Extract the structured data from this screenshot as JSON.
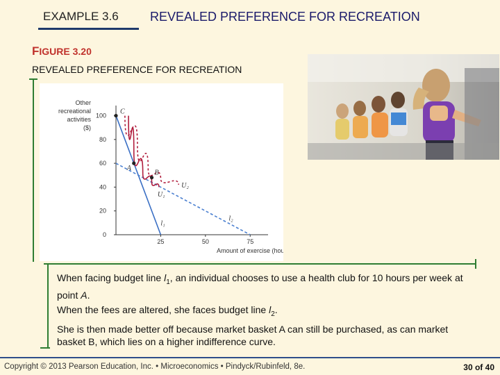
{
  "header": {
    "example_label": "EXAMPLE 3.6",
    "title": "REVEALED PREFERENCE FOR RECREATION"
  },
  "figure": {
    "label_big": "F",
    "label_rest": "IGURE 3.20",
    "subtitle": "REVEALED PREFERENCE FOR RECREATION"
  },
  "chart_data": {
    "type": "line",
    "ylabel_lines": [
      "Other",
      "recreational",
      "activities",
      "($)"
    ],
    "xlabel": "Amount of exercise (hours)",
    "x_ticks": [
      "25",
      "50",
      "75"
    ],
    "y_ticks": [
      "0",
      "20",
      "40",
      "60",
      "80",
      "100"
    ],
    "xlim": [
      0,
      85
    ],
    "ylim": [
      0,
      105
    ],
    "series": [
      {
        "name": "l1",
        "style": "solid",
        "color": "#3a6fc4",
        "points": [
          [
            0,
            100
          ],
          [
            25,
            0
          ]
        ]
      },
      {
        "name": "l2",
        "style": "dashed",
        "color": "#4a7fd0",
        "points": [
          [
            0,
            60
          ],
          [
            75,
            0
          ]
        ]
      },
      {
        "name": "U1",
        "style": "solid",
        "color": "#b01c3c",
        "points": [
          [
            7,
            100
          ],
          [
            10,
            70
          ],
          [
            15,
            52
          ],
          [
            20,
            44
          ],
          [
            24,
            40
          ]
        ]
      },
      {
        "name": "U2",
        "style": "dashed",
        "color": "#b01c3c",
        "points": [
          [
            5,
            100
          ],
          [
            12,
            75
          ],
          [
            18,
            55
          ],
          [
            25,
            47
          ],
          [
            35,
            42
          ]
        ]
      }
    ],
    "annotations": [
      {
        "text": "C",
        "x": 0,
        "y": 100
      },
      {
        "text": "A",
        "x": 10,
        "y": 60
      },
      {
        "text": "B",
        "x": 20,
        "y": 48
      },
      {
        "text": "U₁",
        "x": 24,
        "y": 38
      },
      {
        "text": "U₂",
        "x": 35,
        "y": 42
      },
      {
        "text": "l₁",
        "x": 25,
        "y": 8
      },
      {
        "text": "l₂",
        "x": 63,
        "y": 12
      }
    ],
    "points": [
      {
        "label": "C",
        "x": 0,
        "y": 100
      },
      {
        "label": "A",
        "x": 10,
        "y": 60
      },
      {
        "label": "B",
        "x": 20,
        "y": 48
      }
    ]
  },
  "caption": {
    "p1_a": "When facing budget line ",
    "p1_var": "l",
    "p1_sub": "1",
    "p1_b": ", an individual chooses to use a health club for 10 hours per week at point ",
    "p1_pt": "A",
    "p1_c": ".",
    "p2_a": "When the fees are altered, she faces budget line ",
    "p2_var": "l",
    "p2_sub": "2",
    "p2_b": ".",
    "p3": "She is then made better off because market basket A can still be purchased, as can market basket B, which lies on a higher indifference curve."
  },
  "footer": {
    "copyright": "Copyright © 2013 Pearson Education, Inc. • Microeconomics • Pindyck/Rubinfeld, 8e.",
    "page": "30 of 40"
  },
  "colors": {
    "background": "#fdf6df",
    "accent_green": "#2e7d32",
    "figure_red": "#c0322c",
    "footer_blue": "#2e4f8a"
  }
}
